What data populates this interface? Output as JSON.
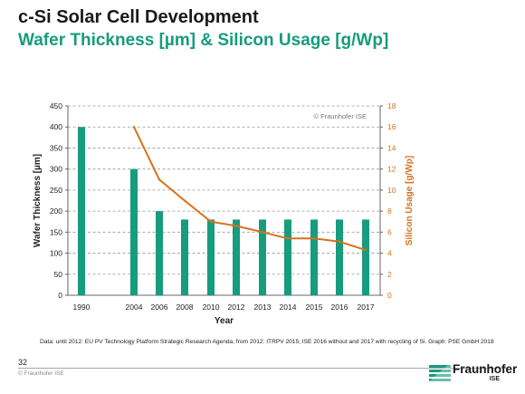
{
  "header": {
    "title": "c-Si Solar Cell Development",
    "subtitle": "Wafer Thickness [µm] & Silicon Usage  [g/Wp]"
  },
  "chart_data": {
    "type": "bar",
    "categories": [
      "1990",
      "2004",
      "2006",
      "2008",
      "2010",
      "2012",
      "2013",
      "2014",
      "2015",
      "2016",
      "2017"
    ],
    "series": [
      {
        "name": "Wafer Thickness [µm]",
        "type": "bar",
        "axis": "left",
        "color": "#179c7d",
        "values": [
          400,
          300,
          200,
          180,
          180,
          180,
          180,
          180,
          180,
          180,
          180
        ]
      },
      {
        "name": "Silicon Usage [g/Wp]",
        "type": "line",
        "axis": "right",
        "color": "#d7711c",
        "values": [
          null,
          16,
          11,
          9,
          7,
          6.6,
          6,
          5.4,
          5.4,
          5.1,
          4.3
        ]
      }
    ],
    "xlabel": "Year",
    "ylabel": "Wafer Thickness [µm]",
    "y2label": "Silicon Usage [g/Wp]",
    "ylim": [
      0,
      450
    ],
    "y2lim": [
      0,
      18
    ],
    "yticks": [
      0,
      50,
      100,
      150,
      200,
      250,
      300,
      350,
      400,
      450
    ],
    "y2ticks": [
      0,
      2,
      4,
      6,
      8,
      10,
      12,
      14,
      16,
      18
    ],
    "grid": "horizontal dashed",
    "annotation": "© Fraunhofer ISE"
  },
  "footer": {
    "note": "Data: until 2012: EU PV Technology Platform Strategic Research Agenda, from 2012: ITRPV 2015; ISE 2016 without and 2017 with recycling of Si. Graph: PSE GmbH 2018",
    "page_number": "32",
    "copyright": "© Fraunhofer ISE",
    "logo_name": "Fraunhofer",
    "logo_sub": "ISE"
  },
  "colors": {
    "accent": "#179c7d",
    "line": "#d7711c",
    "text": "#1a1a1a"
  }
}
